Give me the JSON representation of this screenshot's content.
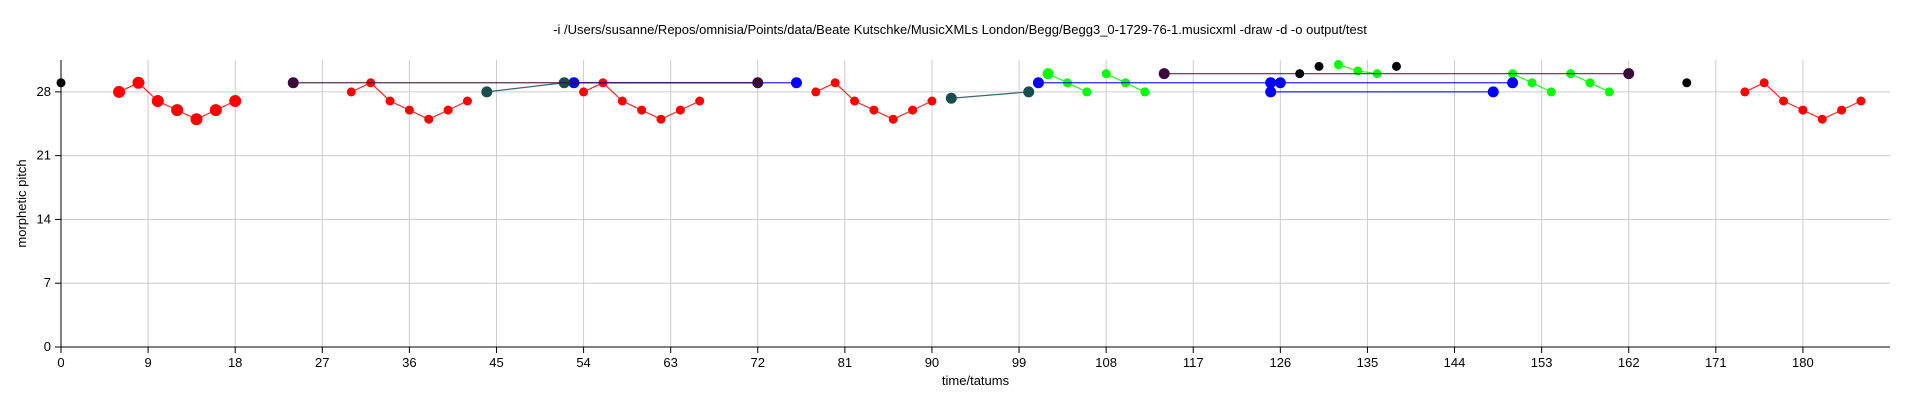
{
  "chart_data": {
    "type": "scatter",
    "title": "-i /Users/susanne/Repos/omnisia/Points/data/Beate Kutschke/MusicXMLs London/Begg/Begg3_0-1729-76-1.musicxml -draw -d -o output/test",
    "xlabel": "time/tatums",
    "ylabel": "morphetic pitch",
    "xlim": [
      0,
      189
    ],
    "ylim": [
      0,
      31.5
    ],
    "xticks": [
      0,
      9,
      18,
      27,
      36,
      45,
      54,
      63,
      72,
      81,
      90,
      99,
      108,
      117,
      126,
      135,
      144,
      153,
      162,
      171,
      180
    ],
    "yticks": [
      0,
      7,
      14,
      21,
      28
    ],
    "grid": true,
    "series": [
      {
        "color": "#ff0000",
        "segments": [
          [
            [
              6,
              28
            ],
            [
              8,
              29
            ],
            [
              10,
              27
            ],
            [
              12,
              26
            ],
            [
              14,
              25
            ],
            [
              16,
              26
            ],
            [
              18,
              27
            ]
          ],
          [
            [
              30,
              28
            ],
            [
              32,
              29
            ],
            [
              34,
              27
            ],
            [
              36,
              26
            ],
            [
              38,
              25
            ],
            [
              40,
              26
            ],
            [
              42,
              27
            ]
          ],
          [
            [
              54,
              28
            ],
            [
              56,
              29
            ],
            [
              58,
              27
            ],
            [
              60,
              26
            ],
            [
              62,
              25
            ],
            [
              64,
              26
            ],
            [
              66,
              27
            ]
          ],
          [
            [
              78,
              28
            ],
            [
              80,
              29
            ],
            [
              82,
              27
            ],
            [
              84,
              26
            ],
            [
              86,
              25
            ],
            [
              88,
              26
            ],
            [
              90,
              27
            ]
          ],
          [
            [
              174,
              28
            ],
            [
              176,
              29
            ],
            [
              178,
              27
            ],
            [
              180,
              26
            ],
            [
              182,
              25
            ],
            [
              184,
              26
            ],
            [
              186,
              27
            ]
          ]
        ],
        "big": 0
      },
      {
        "color": "#00ff00",
        "segments": [
          [
            [
              102,
              30
            ],
            [
              104,
              29
            ],
            [
              106,
              28
            ]
          ],
          [
            [
              108,
              30
            ],
            [
              110,
              29
            ],
            [
              112,
              28
            ]
          ],
          [
            [
              132,
              31
            ],
            [
              134,
              30.3
            ],
            [
              136,
              30
            ]
          ],
          [
            [
              150,
              30
            ],
            [
              152,
              29
            ],
            [
              154,
              28
            ]
          ],
          [
            [
              156,
              30
            ],
            [
              158,
              29
            ],
            [
              160,
              28
            ]
          ]
        ],
        "big": 0
      },
      {
        "color": "#0000ff",
        "segments": [
          [
            [
              53,
              29
            ],
            [
              76,
              29
            ]
          ],
          [
            [
              101,
              29
            ],
            [
              125,
              29
            ]
          ],
          [
            [
              126,
              29
            ],
            [
              150,
              29
            ]
          ],
          [
            [
              125,
              28
            ],
            [
              148,
              28
            ]
          ]
        ],
        "big": 1
      },
      {
        "color": "#1a4d4d",
        "segments": [
          [
            [
              44,
              28
            ],
            [
              52,
              29
            ]
          ],
          [
            [
              92,
              27.3
            ],
            [
              100,
              28
            ]
          ]
        ],
        "big": 1
      },
      {
        "color": "#3a0a3a",
        "segments": [
          [
            [
              24,
              29
            ],
            [
              72,
              29
            ]
          ],
          [
            [
              114,
              30
            ],
            [
              162,
              30
            ]
          ]
        ],
        "big": 1
      },
      {
        "color": "#000000",
        "segments": [
          [
            [
              0,
              29
            ]
          ],
          [
            [
              128,
              30
            ]
          ],
          [
            [
              130,
              30.8
            ]
          ],
          [
            [
              138,
              30.8
            ]
          ],
          [
            [
              168,
              29
            ]
          ]
        ],
        "big": 0
      }
    ]
  }
}
